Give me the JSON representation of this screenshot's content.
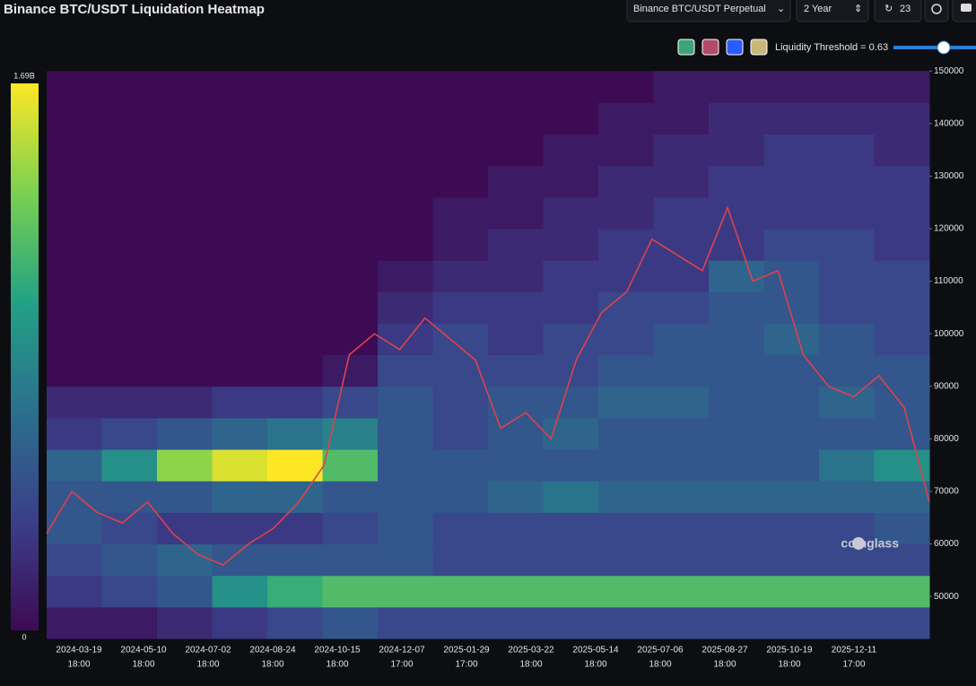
{
  "controls": {
    "exchange": "Binance BTC/USDT Perpetual",
    "range": "2 Year",
    "refresh": "23",
    "threshold": "Liquidity Threshold = 0.63"
  },
  "watermark": "coinglass",
  "chart_data": {
    "type": "heatmap",
    "title": "Binance BTC/USDT Liquidation Heatmap",
    "ylim": [
      41500,
      150200
    ],
    "yticks": [
      50000,
      60000,
      70000,
      80000,
      90000,
      100000,
      110000,
      120000,
      130000,
      140000,
      150000
    ],
    "xticks": [
      {
        "date": "2024-03-19",
        "time": "18:00"
      },
      {
        "date": "2024-05-10",
        "time": "18:00"
      },
      {
        "date": "2024-07-02",
        "time": "18:00"
      },
      {
        "date": "2024-08-24",
        "time": "18:00"
      },
      {
        "date": "2024-10-15",
        "time": "18:00"
      },
      {
        "date": "2024-12-07",
        "time": "17:00"
      },
      {
        "date": "2025-01-29",
        "time": "17:00"
      },
      {
        "date": "2025-03-22",
        "time": "18:00"
      },
      {
        "date": "2025-05-14",
        "time": "18:00"
      },
      {
        "date": "2025-07-06",
        "time": "18:00"
      },
      {
        "date": "2025-08-27",
        "time": "18:00"
      },
      {
        "date": "2025-10-19",
        "time": "18:00"
      },
      {
        "date": "2025-12-11",
        "time": "17:00"
      }
    ],
    "zlim": [
      0,
      1.69
    ],
    "zticks": [
      0,
      {
        "value": 1.69,
        "label": "1.69B"
      }
    ],
    "bins": [
      42000,
      48000,
      54000,
      60000,
      66000,
      72000,
      78000,
      84000,
      90000,
      96000,
      102000,
      108000,
      114000,
      120000,
      126000,
      132000,
      138000,
      144000,
      150000
    ],
    "heat": [
      [
        0.1,
        0.3,
        0.4,
        0.5,
        0.5,
        0.6,
        0.3,
        0.2,
        0,
        0,
        0,
        0,
        0,
        0,
        0,
        0,
        0,
        0
      ],
      [
        0.1,
        0.4,
        0.5,
        0.4,
        0.5,
        0.9,
        0.4,
        0.2,
        0,
        0,
        0,
        0,
        0,
        0,
        0,
        0,
        0,
        0
      ],
      [
        0.2,
        0.5,
        0.6,
        0.3,
        0.5,
        1.4,
        0.5,
        0.2,
        0,
        0,
        0,
        0,
        0,
        0,
        0,
        0,
        0,
        0
      ],
      [
        0.3,
        0.9,
        0.5,
        0.3,
        0.6,
        1.6,
        0.6,
        0.3,
        0,
        0,
        0,
        0,
        0,
        0,
        0,
        0,
        0,
        0
      ],
      [
        0.4,
        1.1,
        0.5,
        0.3,
        0.6,
        1.69,
        0.7,
        0.3,
        0,
        0,
        0,
        0,
        0,
        0,
        0,
        0,
        0,
        0
      ],
      [
        0.5,
        1.2,
        0.5,
        0.4,
        0.5,
        1.2,
        0.8,
        0.4,
        0.1,
        0,
        0,
        0,
        0,
        0,
        0,
        0,
        0,
        0
      ],
      [
        0.4,
        1.2,
        0.5,
        0.5,
        0.5,
        0.5,
        0.5,
        0.5,
        0.4,
        0.3,
        0.2,
        0.1,
        0,
        0,
        0,
        0,
        0,
        0
      ],
      [
        0.4,
        1.2,
        0.4,
        0.4,
        0.5,
        0.5,
        0.4,
        0.4,
        0.4,
        0.4,
        0.3,
        0.2,
        0.1,
        0.1,
        0,
        0,
        0,
        0
      ],
      [
        0.4,
        1.2,
        0.4,
        0.4,
        0.6,
        0.5,
        0.5,
        0.5,
        0.4,
        0.3,
        0.3,
        0.2,
        0.2,
        0.1,
        0.1,
        0,
        0,
        0
      ],
      [
        0.4,
        1.2,
        0.4,
        0.4,
        0.7,
        0.5,
        0.6,
        0.5,
        0.4,
        0.4,
        0.3,
        0.3,
        0.2,
        0.2,
        0.1,
        0.1,
        0,
        0
      ],
      [
        0.4,
        1.2,
        0.4,
        0.4,
        0.6,
        0.5,
        0.5,
        0.6,
        0.5,
        0.4,
        0.4,
        0.3,
        0.3,
        0.2,
        0.2,
        0.1,
        0.1,
        0
      ],
      [
        0.4,
        1.2,
        0.4,
        0.4,
        0.6,
        0.5,
        0.5,
        0.6,
        0.5,
        0.5,
        0.4,
        0.3,
        0.3,
        0.3,
        0.2,
        0.2,
        0.1,
        0.1
      ],
      [
        0.4,
        1.2,
        0.4,
        0.4,
        0.6,
        0.5,
        0.5,
        0.5,
        0.5,
        0.5,
        0.5,
        0.6,
        0.3,
        0.3,
        0.3,
        0.2,
        0.2,
        0.1
      ],
      [
        0.4,
        1.2,
        0.4,
        0.4,
        0.6,
        0.5,
        0.5,
        0.5,
        0.5,
        0.6,
        0.5,
        0.5,
        0.4,
        0.3,
        0.3,
        0.3,
        0.2,
        0.1
      ],
      [
        0.4,
        1.2,
        0.4,
        0.4,
        0.6,
        0.7,
        0.5,
        0.6,
        0.5,
        0.5,
        0.4,
        0.4,
        0.4,
        0.3,
        0.3,
        0.3,
        0.2,
        0.1
      ],
      [
        0.4,
        1.2,
        0.4,
        0.5,
        0.6,
        0.9,
        0.5,
        0.5,
        0.5,
        0.4,
        0.4,
        0.4,
        0.3,
        0.3,
        0.3,
        0.2,
        0.2,
        0.1
      ]
    ],
    "price_color": "#e0414c",
    "price": [
      62000,
      70000,
      66000,
      64000,
      68000,
      62000,
      58000,
      56000,
      60000,
      63000,
      68000,
      75000,
      96000,
      100000,
      97000,
      103000,
      99000,
      95000,
      82000,
      85000,
      80000,
      95000,
      104000,
      108000,
      118000,
      115000,
      112000,
      124000,
      110000,
      112000,
      96000,
      90000,
      88000,
      92000,
      86000,
      68000
    ]
  }
}
